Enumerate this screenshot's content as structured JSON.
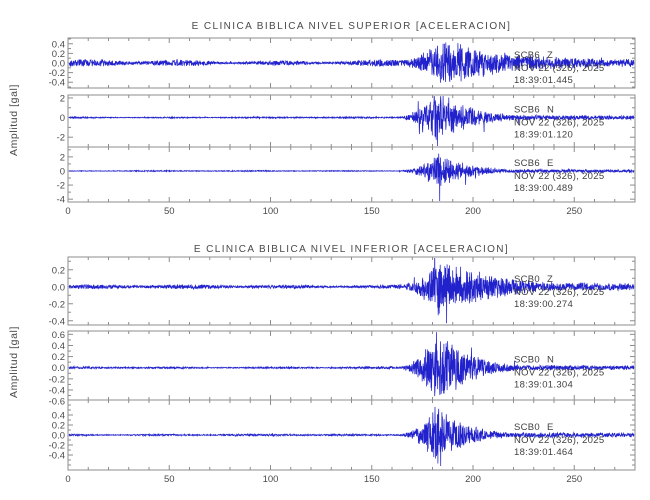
{
  "ylabel": "Amplitud [gal]",
  "colors": {
    "trace": "#2222cc",
    "frame": "#8d8d8d",
    "text": "#4a4a4a",
    "background": "#ffffff"
  },
  "chart_data": {
    "type": "line",
    "x_range": [
      0,
      280
    ],
    "x_ticks": [
      0,
      50,
      100,
      150,
      200,
      250
    ],
    "x_tick_labels": [
      "0",
      "50",
      "100",
      "150",
      "200",
      "250"
    ],
    "x_minor_step": 10,
    "grid": false,
    "panels": [
      {
        "title": "E CLINICA BIBLICA NIVEL SUPERIOR [ACELERACION]",
        "traces": [
          {
            "station": "SCB6",
            "channel": "Z",
            "date": "NOV 22 (326), 2025",
            "time": "18:39:01.445",
            "y_ticks": [
              "0.4",
              "0.2",
              "0.0",
              "-0.2",
              "-0.4"
            ],
            "y_range": [
              -0.52,
              0.52
            ],
            "noise_amp": 0.045,
            "noise_mod": 0.45,
            "event_start": 158,
            "peak_time": 184,
            "peak_amp": 0.42,
            "decay_tau": 40,
            "coda_floor": 0.1,
            "seed": 101
          },
          {
            "station": "SCB6",
            "channel": "N",
            "date": "NOV 22 (326), 2025",
            "time": "18:39:01.120",
            "y_ticks": [
              "2",
              "0",
              "-2"
            ],
            "y_range": [
              -3.0,
              2.3
            ],
            "noise_amp": 0.055,
            "noise_mod": 0.25,
            "event_start": 160,
            "peak_time": 182,
            "peak_amp": 2.6,
            "decay_tau": 16,
            "coda_floor": 0.28,
            "seed": 102,
            "spike": {
              "t": 182.5,
              "v": -2.9
            }
          },
          {
            "station": "SCB6",
            "channel": "E",
            "date": "NOV 22 (326), 2025",
            "time": "18:39:00.489",
            "y_ticks": [
              "2",
              "0",
              "-2",
              "-4"
            ],
            "y_range": [
              -4.4,
              3.4
            ],
            "noise_amp": 0.055,
            "noise_mod": 0.25,
            "event_start": 160,
            "peak_time": 183,
            "peak_amp": 2.3,
            "decay_tau": 15,
            "coda_floor": 0.26,
            "seed": 103,
            "spike": {
              "t": 183.5,
              "v": -4.3
            }
          }
        ]
      },
      {
        "title": "E CLINICA BIBLICA NIVEL INFERIOR [ACELERACION]",
        "traces": [
          {
            "station": "SCB0",
            "channel": "Z",
            "date": "NOV 22 (326), 2025",
            "time": "18:39:00.274",
            "y_ticks": [
              "0.2",
              "0.0",
              "-0.2",
              "-0.4"
            ],
            "y_range": [
              -0.45,
              0.35
            ],
            "noise_amp": 0.018,
            "noise_mod": 0.3,
            "event_start": 158,
            "peak_time": 184,
            "peak_amp": 0.3,
            "decay_tau": 28,
            "coda_floor": 0.05,
            "seed": 201,
            "spike": {
              "t": 187,
              "v": -0.43
            }
          },
          {
            "station": "SCB0",
            "channel": "N",
            "date": "NOV 22 (326), 2025",
            "time": "18:39:01.304",
            "y_ticks": [
              "0.6",
              "0.4",
              "0.2",
              "0.0",
              "-0.2",
              "-0.4",
              "-0.6"
            ],
            "y_range": [
              -0.58,
              0.66
            ],
            "noise_amp": 0.014,
            "noise_mod": 0.3,
            "event_start": 160,
            "peak_time": 183,
            "peak_amp": 0.6,
            "decay_tau": 15,
            "coda_floor": 0.05,
            "seed": 202,
            "spike": {
              "t": 182,
              "v": 0.64
            }
          },
          {
            "station": "SCB0",
            "channel": "E",
            "date": "NOV 22 (326), 2025",
            "time": "18:39:01.464",
            "y_ticks": [
              "0.4",
              "0.2",
              "0.0",
              "-0.2",
              "-0.4"
            ],
            "y_range": [
              -0.7,
              0.7
            ],
            "noise_amp": 0.014,
            "noise_mod": 0.3,
            "event_start": 160,
            "peak_time": 182,
            "peak_amp": 0.5,
            "decay_tau": 15,
            "coda_floor": 0.05,
            "seed": 203,
            "spike": {
              "t": 184,
              "v": -0.62
            }
          }
        ]
      }
    ]
  }
}
